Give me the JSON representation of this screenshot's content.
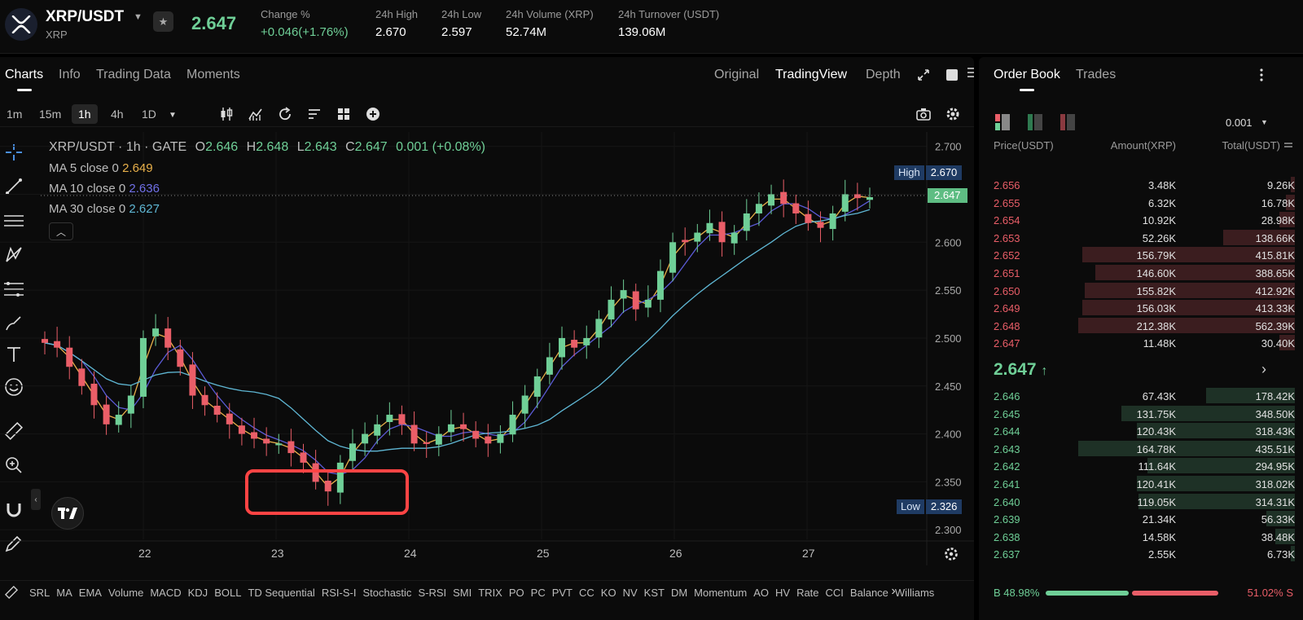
{
  "header": {
    "pair": "XRP/USDT",
    "base": "XRP",
    "last_price": "2.647",
    "change_label": "Change %",
    "change_value": "+0.046(+1.76%)",
    "high_label": "24h High",
    "high_value": "2.670",
    "low_label": "24h Low",
    "low_value": "2.597",
    "volume_label": "24h Volume (XRP)",
    "volume_value": "52.74M",
    "turnover_label": "24h Turnover (USDT)",
    "turnover_value": "139.06M"
  },
  "chart_tabs": [
    "Charts",
    "Info",
    "Trading Data",
    "Moments"
  ],
  "view_options": [
    "Original",
    "TradingView",
    "Depth"
  ],
  "timeframes": [
    "1m",
    "15m",
    "1h",
    "4h",
    "1D"
  ],
  "legend": {
    "title": "XRP/USDT · 1h · GATE",
    "o_label": "O",
    "o": "2.646",
    "h_label": "H",
    "h": "2.648",
    "l_label": "L",
    "l": "2.643",
    "c_label": "C",
    "c": "2.647",
    "chg": "0.001 (+0.08%)",
    "ma5_label": "MA 5 close 0",
    "ma5": "2.649",
    "ma10_label": "MA 10 close 0",
    "ma10": "2.636",
    "ma30_label": "MA 30 close 0",
    "ma30": "2.627"
  },
  "tags": {
    "high_label": "High",
    "high": "2.670",
    "current": "2.647",
    "low_label": "Low",
    "low": "2.326"
  },
  "colors": {
    "up": "#6fcf97",
    "down": "#ea5e68",
    "ma5": "#e8b04a",
    "ma10": "#5b5bd6",
    "ma30": "#5fb7d4",
    "highlight_box": "#ff4444"
  },
  "chart_data": {
    "type": "candlestick",
    "title": "XRP/USDT · 1h · GATE",
    "y_ticks": [
      "2.700",
      "2.650",
      "2.600",
      "2.550",
      "2.500",
      "2.450",
      "2.400",
      "2.350",
      "2.300"
    ],
    "x_ticks": [
      "22",
      "23",
      "24",
      "25",
      "26",
      "27"
    ],
    "ylim": [
      2.29,
      2.715
    ],
    "series": [
      {
        "name": "MA 5 close 0",
        "last": 2.649
      },
      {
        "name": "MA 10 close 0",
        "last": 2.636
      },
      {
        "name": "MA 30 close 0",
        "last": 2.627
      }
    ],
    "closes": [
      2.495,
      2.49,
      2.47,
      2.45,
      2.43,
      2.41,
      2.42,
      2.44,
      2.5,
      2.51,
      2.49,
      2.47,
      2.44,
      2.43,
      2.42,
      2.41,
      2.4,
      2.395,
      2.39,
      2.39,
      2.38,
      2.37,
      2.35,
      2.34,
      2.37,
      2.39,
      2.4,
      2.41,
      2.42,
      2.41,
      2.39,
      2.39,
      2.4,
      2.41,
      2.405,
      2.395,
      2.39,
      2.4,
      2.42,
      2.44,
      2.46,
      2.48,
      2.5,
      2.49,
      2.5,
      2.52,
      2.54,
      2.55,
      2.53,
      2.54,
      2.57,
      2.6,
      2.6,
      2.61,
      2.62,
      2.6,
      2.61,
      2.63,
      2.64,
      2.65,
      2.64,
      2.63,
      2.62,
      2.615,
      2.63,
      2.65,
      2.646,
      2.647
    ]
  },
  "highlight_box_label": "",
  "indicators": [
    "SRL",
    "MA",
    "EMA",
    "Volume",
    "MACD",
    "KDJ",
    "BOLL",
    "TD Sequential",
    "RSI-S-I",
    "Stochastic",
    "S-RSI",
    "SMI",
    "TRIX",
    "PO",
    "PC",
    "PVT",
    "CC",
    "KO",
    "NV",
    "KST",
    "DM",
    "Momentum",
    "AO",
    "HV",
    "Rate",
    "CCI",
    "Balance",
    "Williams"
  ],
  "orderbook": {
    "tabs": [
      "Order Book",
      "Trades"
    ],
    "precision": "0.001",
    "col_price": "Price(USDT)",
    "col_amount": "Amount(XRP)",
    "col_total": "Total(USDT)",
    "asks": [
      {
        "price": "2.656",
        "amount": "3.48K",
        "total": "9.26K",
        "depth": 0.02
      },
      {
        "price": "2.655",
        "amount": "6.32K",
        "total": "16.78K",
        "depth": 0.04
      },
      {
        "price": "2.654",
        "amount": "10.92K",
        "total": "28.98K",
        "depth": 0.07
      },
      {
        "price": "2.653",
        "amount": "52.26K",
        "total": "138.66K",
        "depth": 0.33
      },
      {
        "price": "2.652",
        "amount": "156.79K",
        "total": "415.81K",
        "depth": 0.98
      },
      {
        "price": "2.651",
        "amount": "146.60K",
        "total": "388.65K",
        "depth": 0.92
      },
      {
        "price": "2.650",
        "amount": "155.82K",
        "total": "412.92K",
        "depth": 0.97
      },
      {
        "price": "2.649",
        "amount": "156.03K",
        "total": "413.33K",
        "depth": 0.98
      },
      {
        "price": "2.648",
        "amount": "212.38K",
        "total": "562.39K",
        "depth": 1.0
      },
      {
        "price": "2.647",
        "amount": "11.48K",
        "total": "30.40K",
        "depth": 0.07
      }
    ],
    "mid": "2.647",
    "bids": [
      {
        "price": "2.646",
        "amount": "67.43K",
        "total": "178.42K",
        "depth": 0.41
      },
      {
        "price": "2.645",
        "amount": "131.75K",
        "total": "348.50K",
        "depth": 0.8
      },
      {
        "price": "2.644",
        "amount": "120.43K",
        "total": "318.43K",
        "depth": 0.73
      },
      {
        "price": "2.643",
        "amount": "164.78K",
        "total": "435.51K",
        "depth": 1.0
      },
      {
        "price": "2.642",
        "amount": "111.64K",
        "total": "294.95K",
        "depth": 0.68
      },
      {
        "price": "2.641",
        "amount": "120.41K",
        "total": "318.02K",
        "depth": 0.73
      },
      {
        "price": "2.640",
        "amount": "119.05K",
        "total": "314.31K",
        "depth": 0.72
      },
      {
        "price": "2.639",
        "amount": "21.34K",
        "total": "56.33K",
        "depth": 0.13
      },
      {
        "price": "2.638",
        "amount": "14.58K",
        "total": "38.48K",
        "depth": 0.09
      },
      {
        "price": "2.637",
        "amount": "2.55K",
        "total": "6.73K",
        "depth": 0.02
      }
    ],
    "buy_ratio": "B 48.98%",
    "sell_ratio": "51.02% S",
    "buy_fraction": 0.4898
  }
}
